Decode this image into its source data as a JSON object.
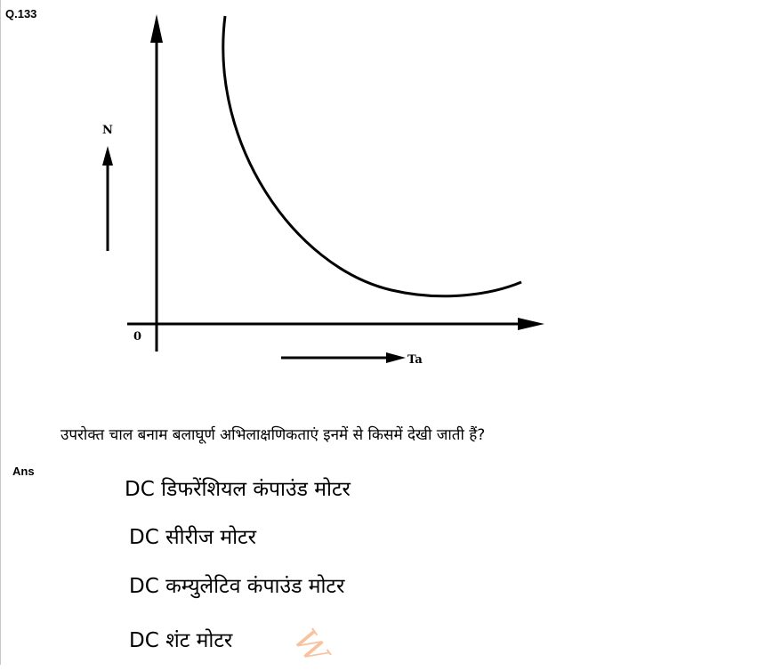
{
  "question_number": "Q.133",
  "graph": {
    "y_axis_label": "N",
    "x_axis_label": "Ta",
    "origin_label": "0"
  },
  "question_text": "उपरोक्त चाल बनाम बलाघूर्ण अभिलाक्षणिकताएं इनमें से किसमें देखी जाती हैं?",
  "answer_label": "Ans",
  "options": [
    "DC डिफरेंशियल कंपाउंड मोटर",
    "DC सीरीज मोटर",
    "DC कम्युलेटिव कंपाउंड मोटर",
    "DC शंट मोटर"
  ],
  "watermark": "W"
}
